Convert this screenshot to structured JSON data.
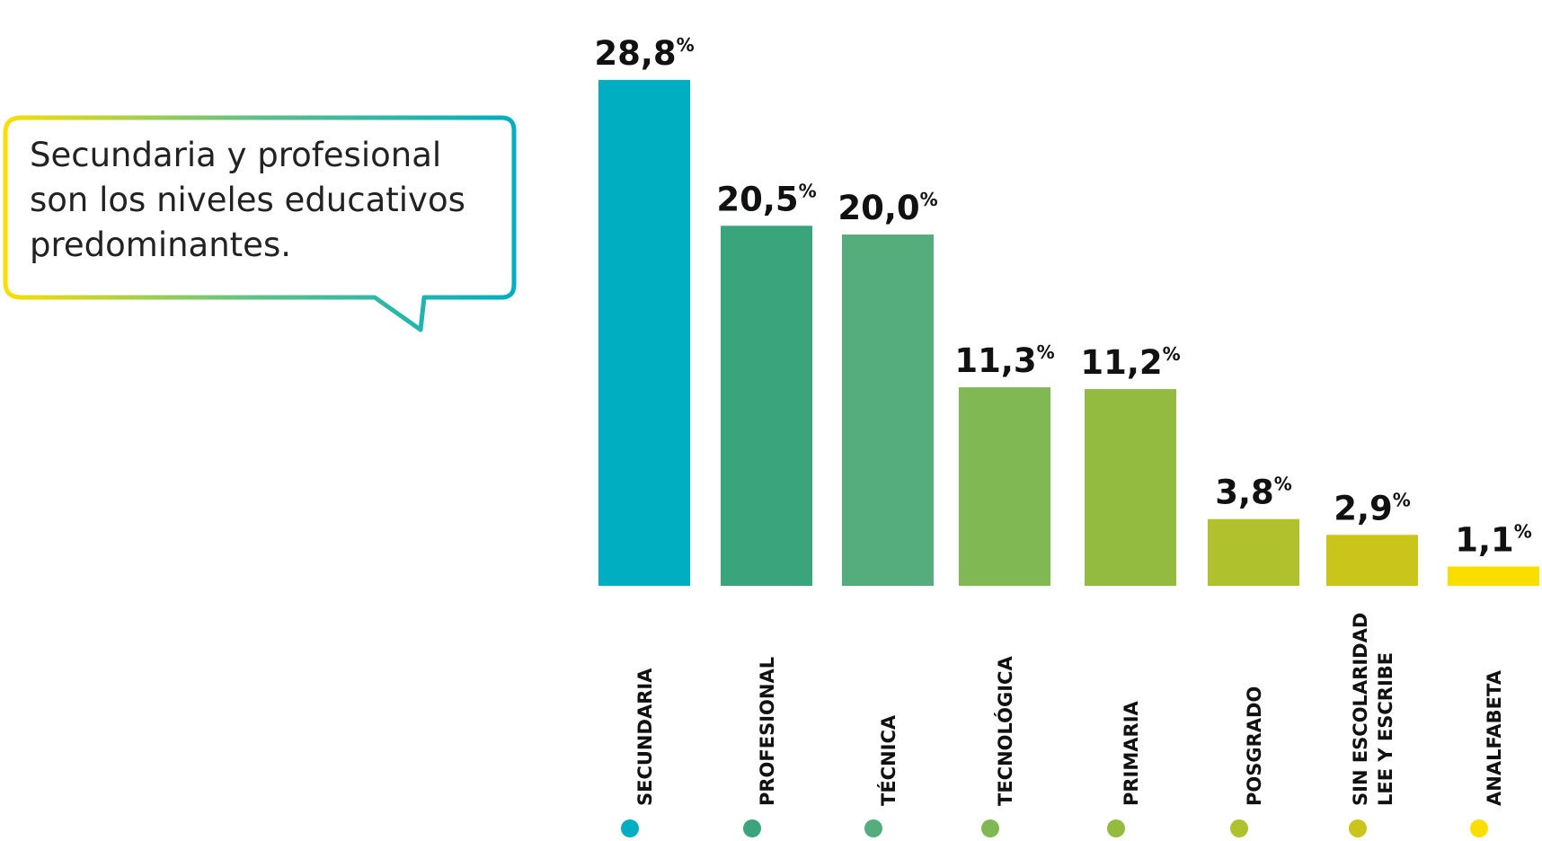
{
  "callout": {
    "text": "Secundaria y profesional\nson los niveles educativos\npredominantes."
  },
  "chart_data": {
    "type": "bar",
    "categories": [
      [
        "SECUNDARIA"
      ],
      [
        "PROFESIONAL"
      ],
      [
        "TÉCNICA"
      ],
      [
        "TECNOLÓGICA"
      ],
      [
        "PRIMARIA"
      ],
      [
        "POSGRADO"
      ],
      [
        "SIN ESCOLARIDAD",
        "LEE Y ESCRIBE"
      ],
      [
        "ANALFABETA"
      ]
    ],
    "values": [
      28.8,
      20.5,
      20.0,
      11.3,
      11.2,
      3.8,
      2.9,
      1.1
    ],
    "value_labels": [
      "28,8",
      "20,5",
      "20,0",
      "11,3",
      "11,2",
      "3,8",
      "2,9",
      "1,1"
    ],
    "unit": "%",
    "colors": [
      "#00aec1",
      "#3aa57c",
      "#55ac7d",
      "#80b854",
      "#93bb40",
      "#afc22e",
      "#c9c51b",
      "#f8df00"
    ],
    "ylim": [
      0,
      28.8
    ],
    "grid": false,
    "legend": "none"
  }
}
